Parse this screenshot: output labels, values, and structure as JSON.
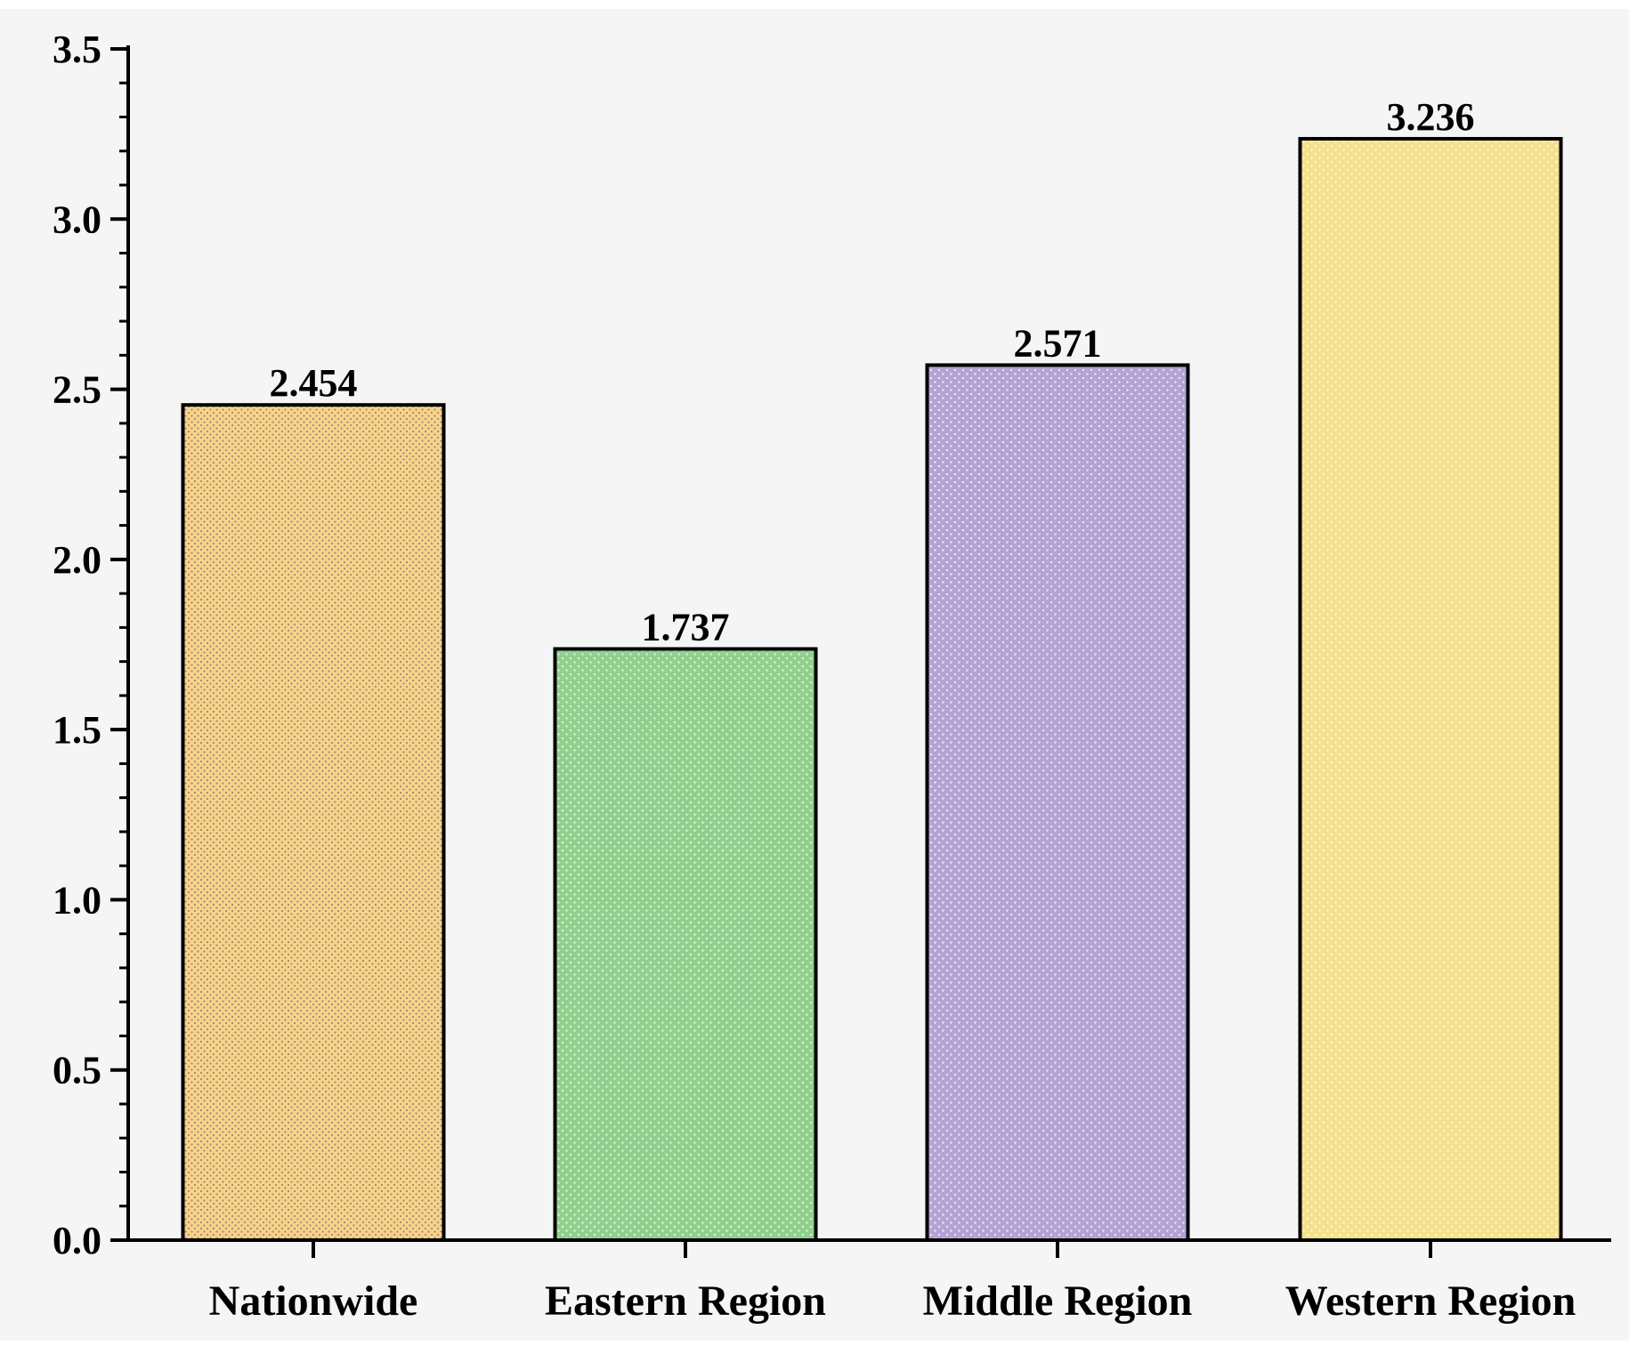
{
  "chart_data": {
    "type": "bar",
    "title": "",
    "xlabel": "",
    "ylabel": "",
    "categories": [
      "Nationwide",
      "Eastern Region",
      "Middle Region",
      "Western Region"
    ],
    "values": [
      2.454,
      1.737,
      2.571,
      3.236
    ],
    "value_labels": [
      "2.454",
      "1.737",
      "2.571",
      "3.236"
    ],
    "bar_colors": [
      "#f6d488",
      "#8fd18c",
      "#b4a3d2",
      "#f5e08c"
    ],
    "ylim": [
      0,
      3.5
    ],
    "yticks": [
      0.0,
      0.5,
      1.0,
      1.5,
      2.0,
      2.5,
      3.0,
      3.5
    ],
    "ytick_labels": [
      "0.0",
      "0.5",
      "1.0",
      "1.5",
      "2.0",
      "2.5",
      "3.0",
      "3.5"
    ],
    "grid": false,
    "legend": "none",
    "background": "#f5f5f5"
  }
}
